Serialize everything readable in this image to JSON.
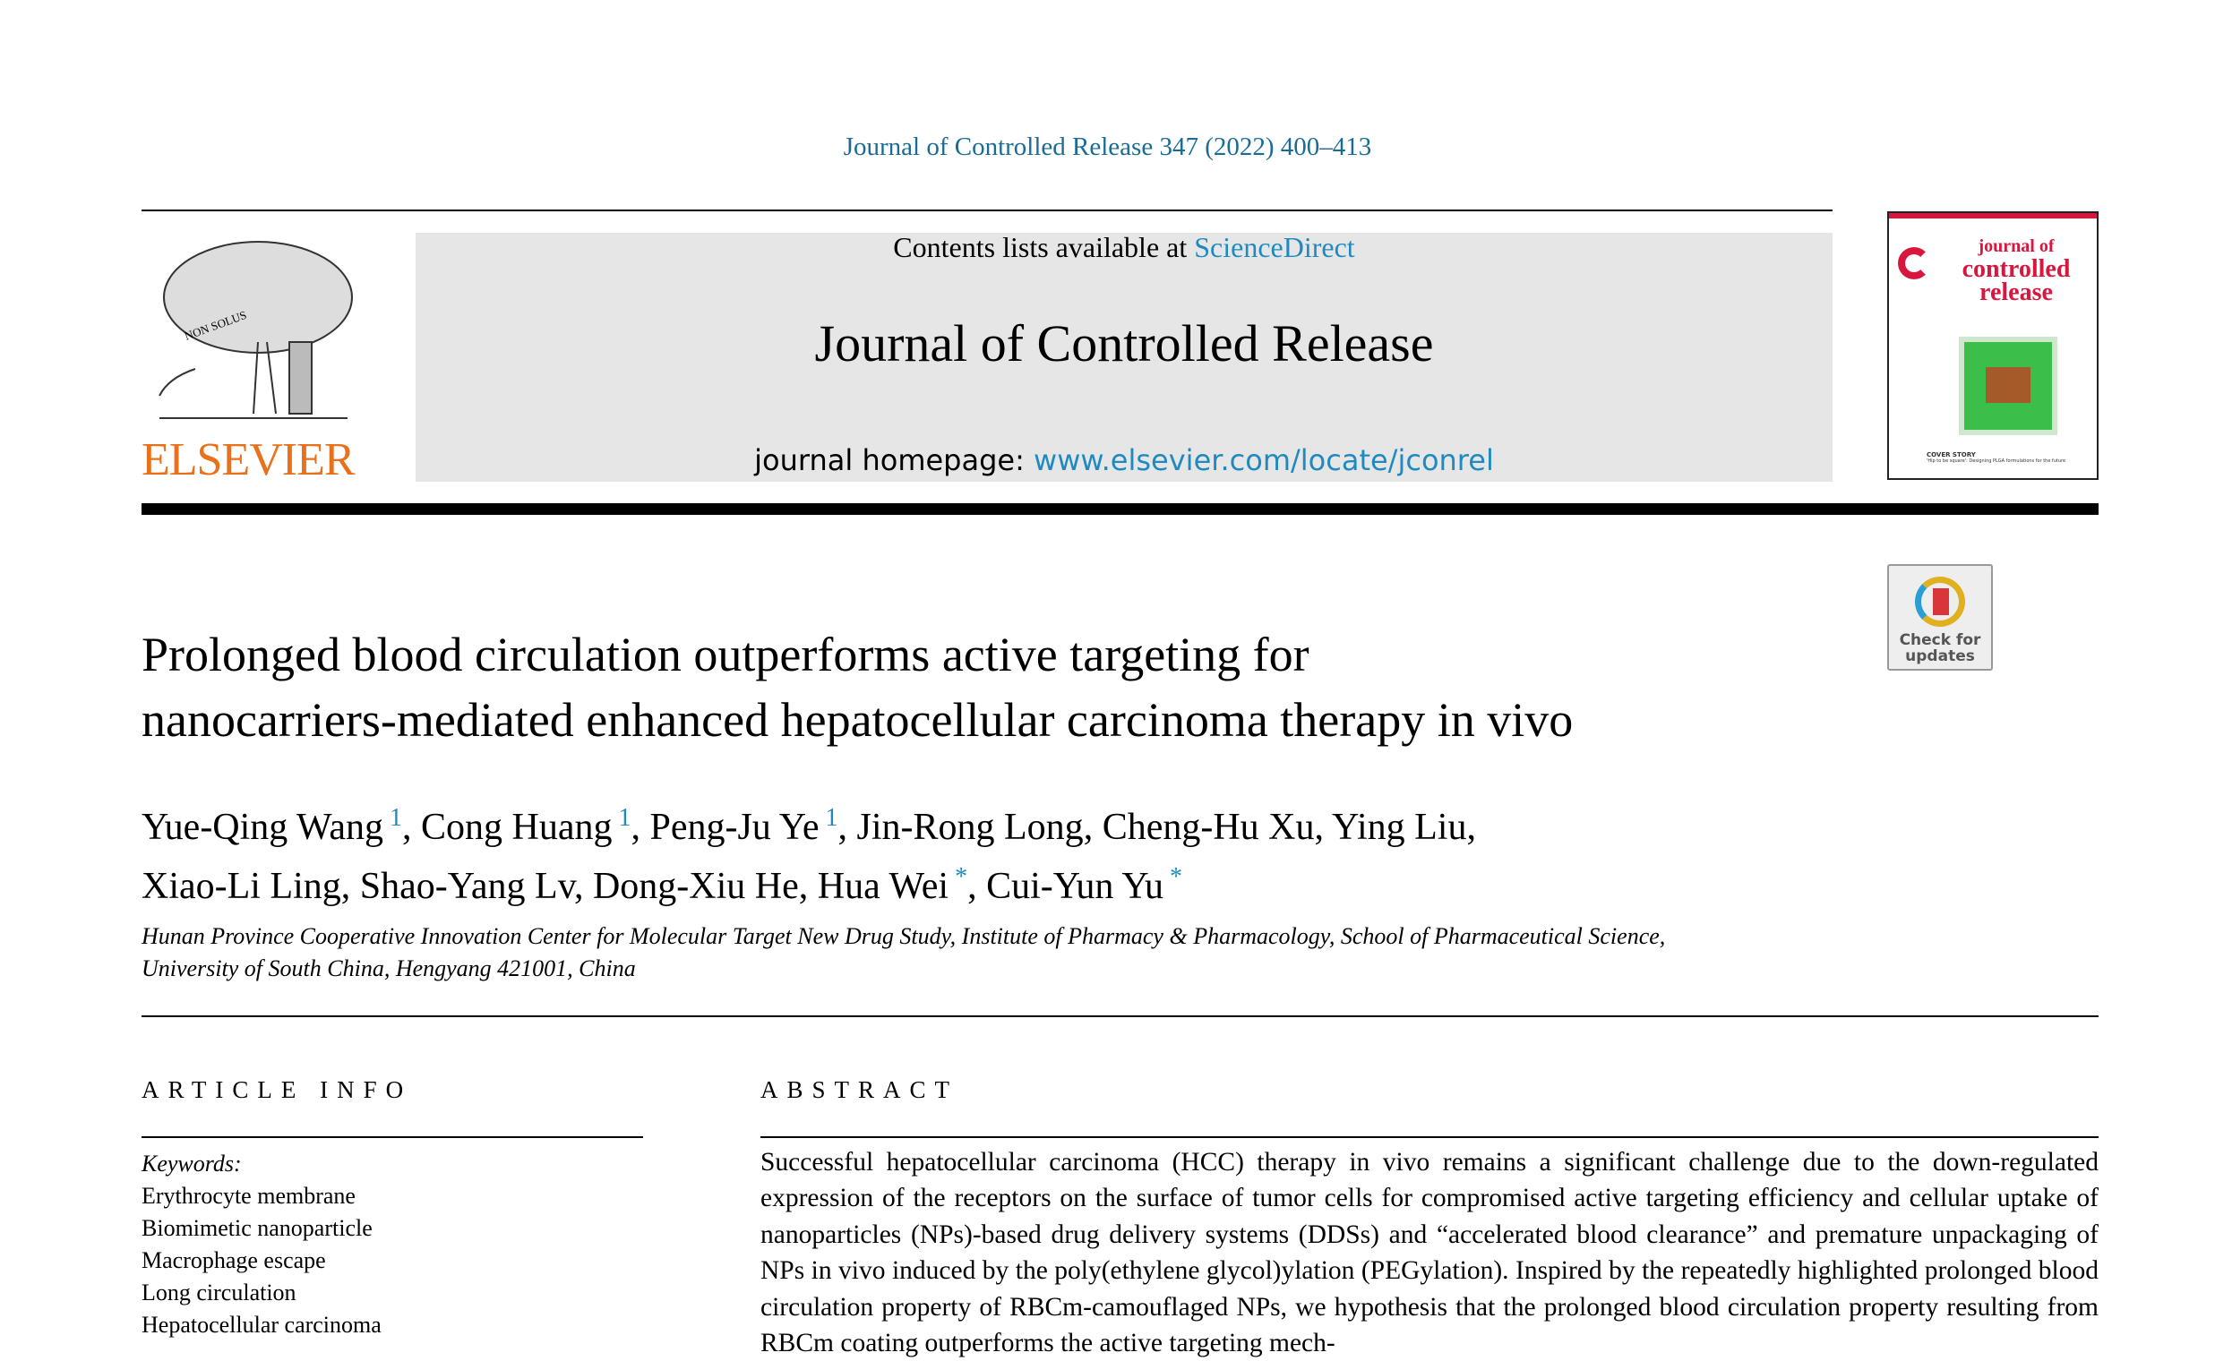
{
  "header": {
    "citation": "Journal of Controlled Release 347 (2022) 400–413",
    "contents_prefix": "Contents lists available at ",
    "contents_link": "ScienceDirect",
    "journal_title": "Journal of Controlled Release",
    "homepage_prefix": "journal homepage: ",
    "homepage_link": "www.elsevier.com/locate/jconrel",
    "publisher": "ELSEVIER",
    "logo_motto": "NON SOLUS"
  },
  "cover": {
    "line1": "journal of",
    "line2": "controlled",
    "line3": "release",
    "story_label": "COVER STORY",
    "story": "'Hip to be square': Designing PLGA formulations for the future"
  },
  "check_updates": {
    "line1": "Check for",
    "line2": "updates"
  },
  "article": {
    "title_line1": "Prolonged blood circulation outperforms active targeting for",
    "title_line2": "nanocarriers-mediated enhanced hepatocellular carcinoma therapy in vivo",
    "authors": [
      {
        "name": "Yue-Qing Wang",
        "mark": "1"
      },
      {
        "name": "Cong Huang",
        "mark": "1"
      },
      {
        "name": "Peng-Ju Ye",
        "mark": "1"
      },
      {
        "name": "Jin-Rong Long"
      },
      {
        "name": "Cheng-Hu Xu"
      },
      {
        "name": "Ying Liu"
      },
      {
        "name": "Xiao-Li Ling"
      },
      {
        "name": "Shao-Yang Lv"
      },
      {
        "name": "Dong-Xiu He"
      },
      {
        "name": "Hua Wei",
        "mark": "*"
      },
      {
        "name": "Cui-Yun Yu",
        "mark": "*"
      }
    ],
    "affiliation_line1": "Hunan Province Cooperative Innovation Center for Molecular Target New Drug Study, Institute of Pharmacy & Pharmacology, School of Pharmaceutical Science,",
    "affiliation_line2": "University of South China, Hengyang 421001, China"
  },
  "article_info": {
    "heading": "ARTICLE INFO",
    "keywords_label": "Keywords:",
    "keywords": [
      "Erythrocyte membrane",
      "Biomimetic nanoparticle",
      "Macrophage escape",
      "Long circulation",
      "Hepatocellular carcinoma"
    ]
  },
  "abstract": {
    "heading": "ABSTRACT",
    "text": "Successful hepatocellular carcinoma (HCC) therapy in vivo remains a significant challenge due to the down-regulated expression of the receptors on the surface of tumor cells for compromised active targeting efficiency and cellular uptake of nanoparticles (NPs)-based drug delivery systems (DDSs) and “accelerated blood clearance” and premature unpackaging of NPs in vivo induced by the poly(ethylene glycol)ylation (PEGylation). Inspired by the repeatedly highlighted prolonged blood circulation property of RBCm-camouflaged NPs, we hypothesis that the prolonged blood circulation property resulting from RBCm coating outperforms the active targeting mech-"
  },
  "colors": {
    "link": "#1f8ac0",
    "citation": "#1a6b96",
    "elsevier": "#e9711c",
    "cover_red": "#d8173f",
    "grey_box": "#e6e6e6"
  }
}
